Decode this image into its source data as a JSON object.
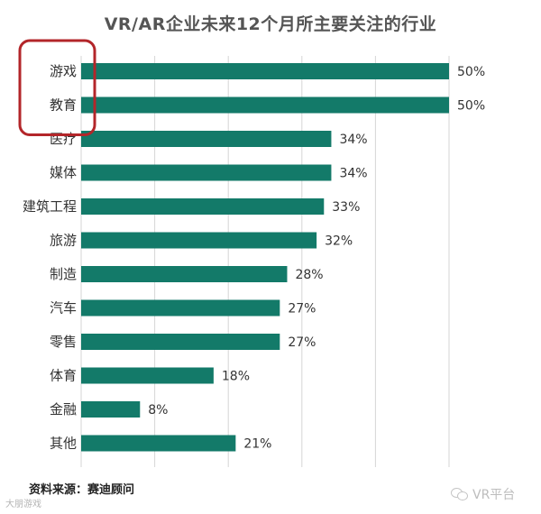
{
  "title": "VR/AR企业未来12个月所主要关注的行业",
  "source": "资料来源：赛迪顾问",
  "watermark_right": "VR平台",
  "watermark_left": "大朋游戏",
  "colors": {
    "bar": "#137a69",
    "highlight_box": "#b3262a",
    "grid": "#d6d6d6"
  },
  "chart_data": {
    "type": "bar",
    "orientation": "horizontal",
    "title": "VR/AR企业未来12个月所主要关注的行业",
    "categories": [
      "游戏",
      "教育",
      "医疗",
      "媒体",
      "建筑工程",
      "旅游",
      "制造",
      "汽车",
      "零售",
      "体育",
      "金融",
      "其他"
    ],
    "values": [
      50,
      50,
      34,
      34,
      33,
      32,
      28,
      27,
      27,
      18,
      8,
      21
    ],
    "value_labels": [
      "50%",
      "50%",
      "34%",
      "34%",
      "33%",
      "32%",
      "28%",
      "27%",
      "27%",
      "18%",
      "8%",
      "21%"
    ],
    "unit": "%",
    "xlim": [
      0,
      50
    ],
    "grid": true,
    "highlighted_categories": [
      "游戏",
      "教育"
    ]
  }
}
